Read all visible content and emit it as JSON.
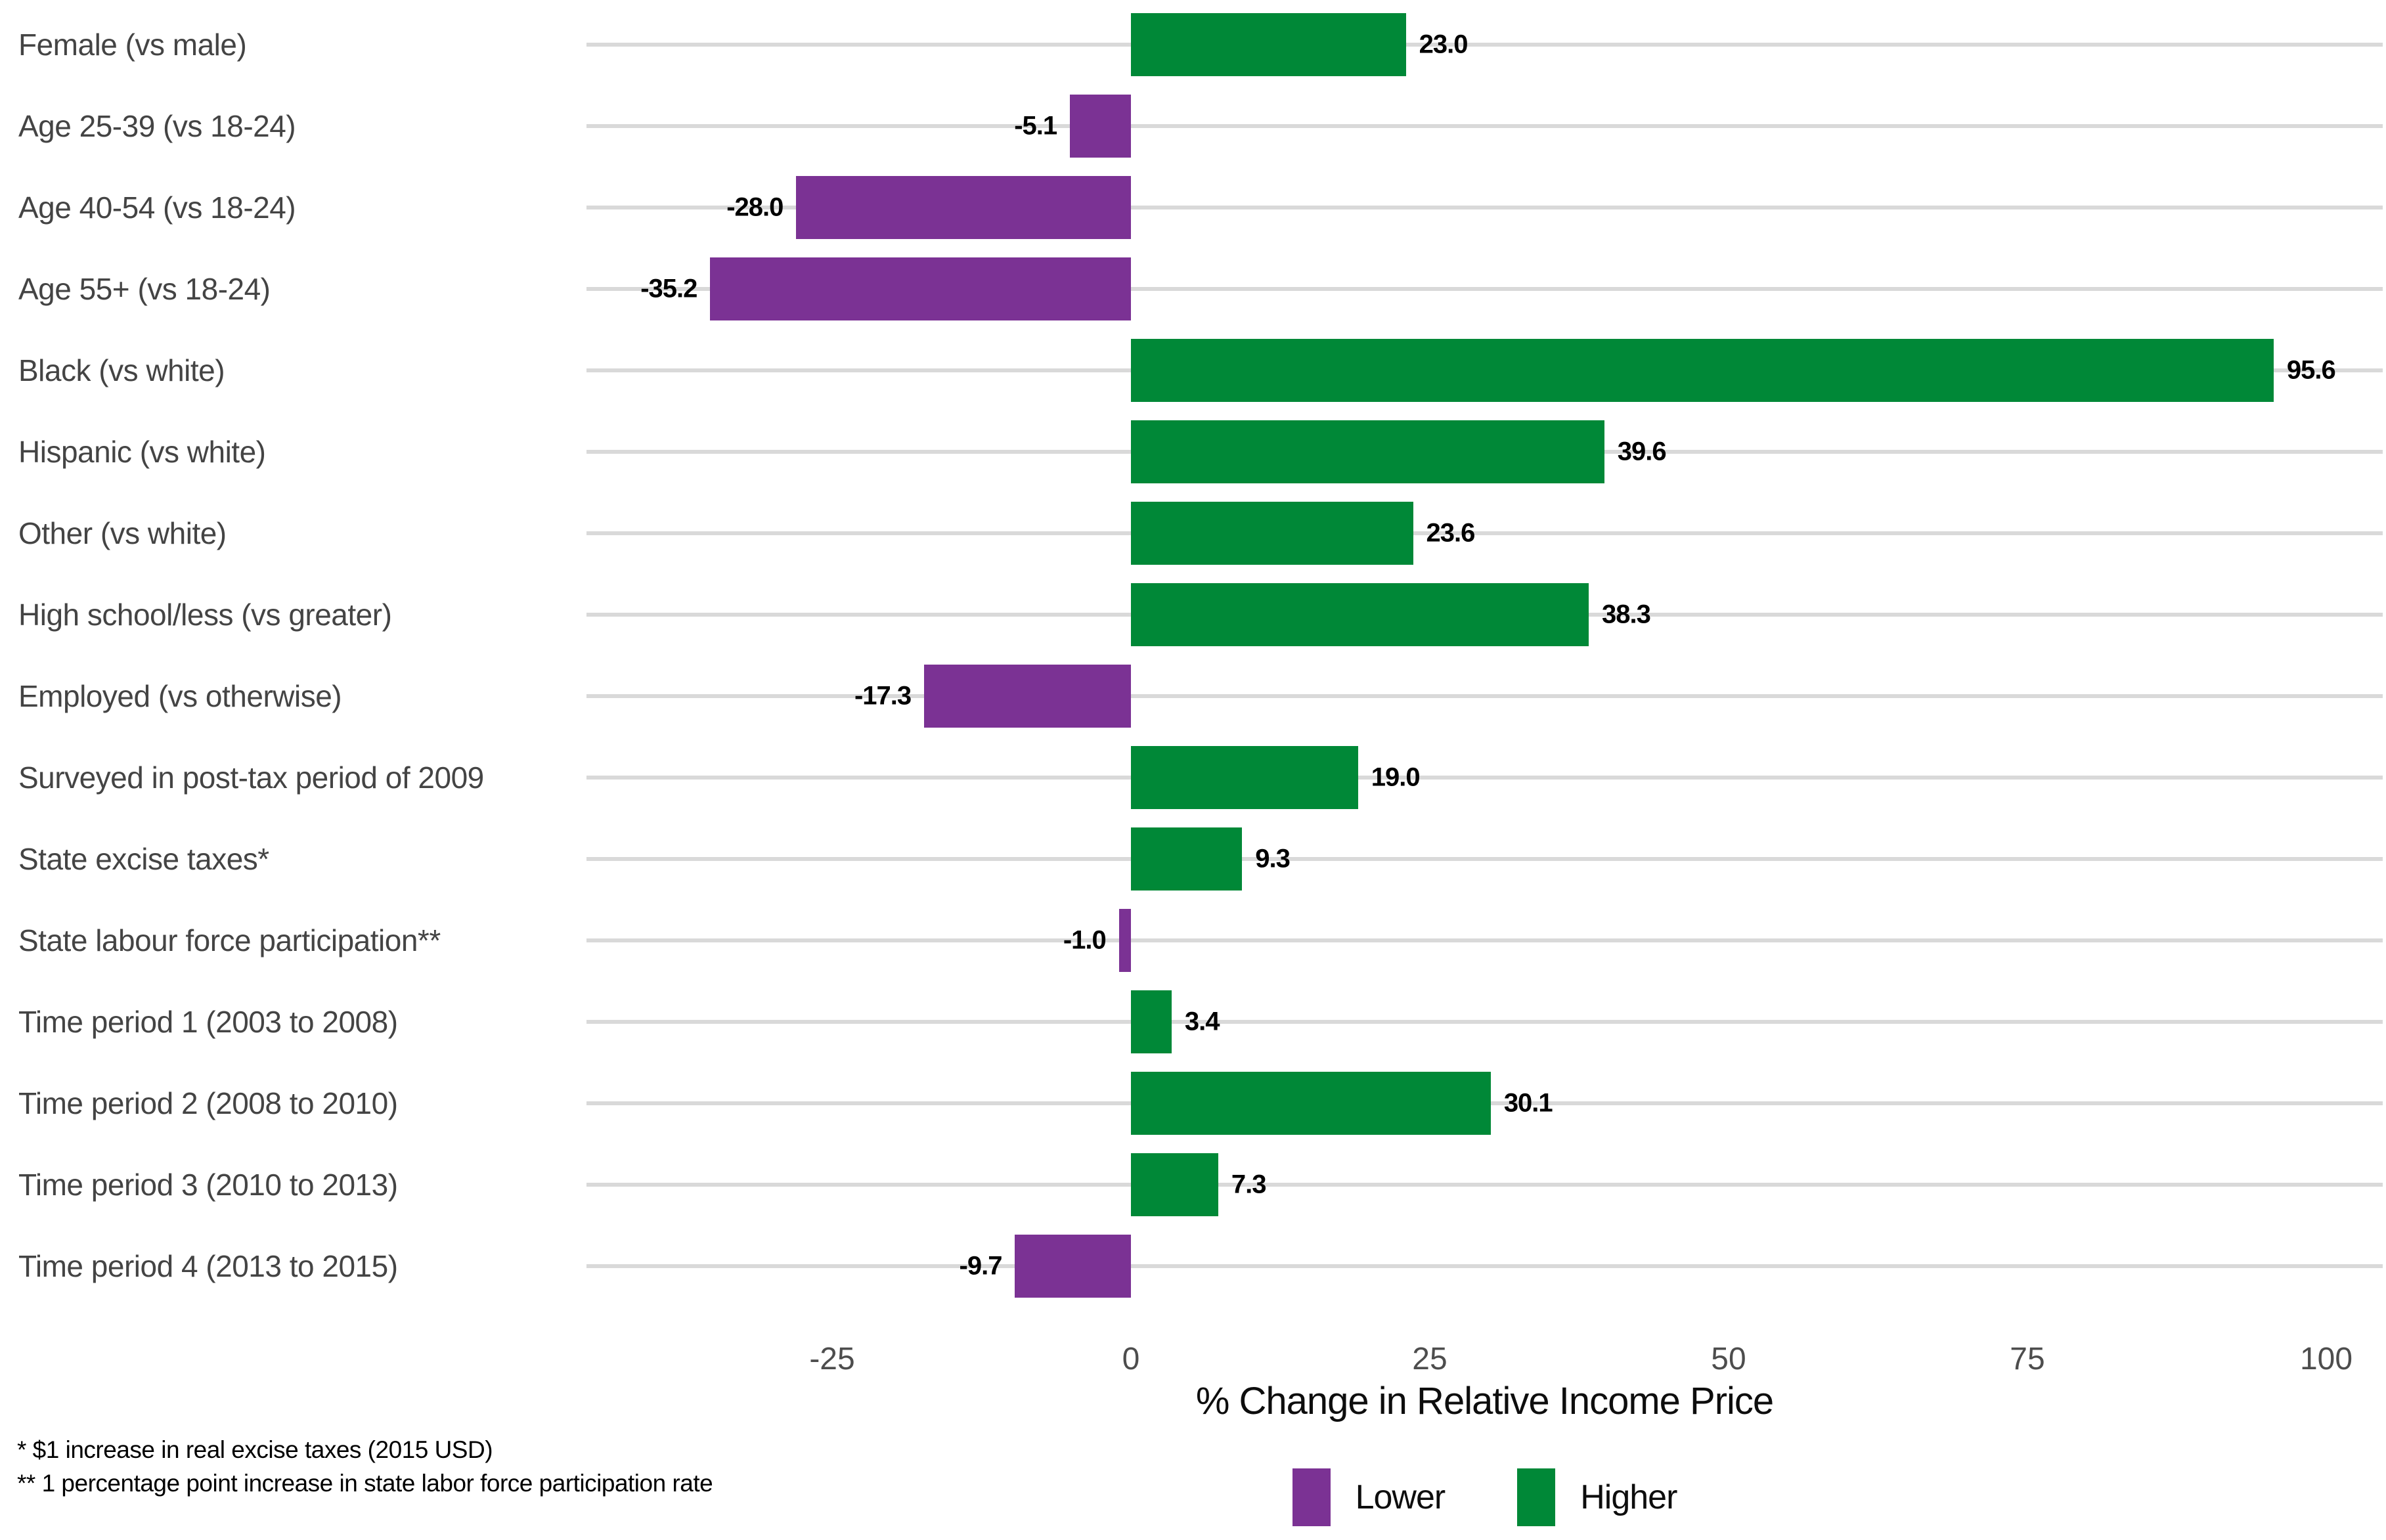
{
  "chart_data": {
    "type": "bar",
    "orientation": "horizontal",
    "title": "",
    "xlabel": "% Change in Relative Income Price",
    "ylabel": "",
    "categories": [
      "Female (vs male)",
      "Age 25-39 (vs 18-24)",
      "Age 40-54 (vs 18-24)",
      "Age 55+ (vs 18-24)",
      "Black (vs white)",
      "Hispanic (vs white)",
      "Other (vs white)",
      "High school/less (vs greater)",
      "Employed (vs otherwise)",
      "Surveyed in post-tax period of 2009",
      "State excise taxes*",
      "State labour force participation**",
      "Time period 1 (2003 to 2008)",
      "Time period 2 (2008 to 2010)",
      "Time period 3 (2010 to 2013)",
      "Time period 4 (2013 to 2015)"
    ],
    "values": [
      23.0,
      -5.1,
      -28.0,
      -35.2,
      95.6,
      39.6,
      23.6,
      38.3,
      -17.3,
      19.0,
      9.3,
      -1.0,
      3.4,
      30.1,
      7.3,
      -9.7
    ],
    "value_label_decimals": 1,
    "x_ticks": [
      -25,
      0,
      25,
      50,
      75,
      100
    ],
    "xlim": [
      -45.5,
      104.7
    ],
    "grid": "horizontal-only",
    "legend_position": "bottom-center",
    "colors": {
      "lower": "#7b3294",
      "higher": "#008837"
    },
    "legend": [
      {
        "key": "lower",
        "label": "Lower"
      },
      {
        "key": "higher",
        "label": "Higher"
      }
    ]
  },
  "footnotes": [
    "* $1 increase in real excise taxes (2015 USD)",
    "** 1 percentage point increase in state labor force participation rate"
  ]
}
